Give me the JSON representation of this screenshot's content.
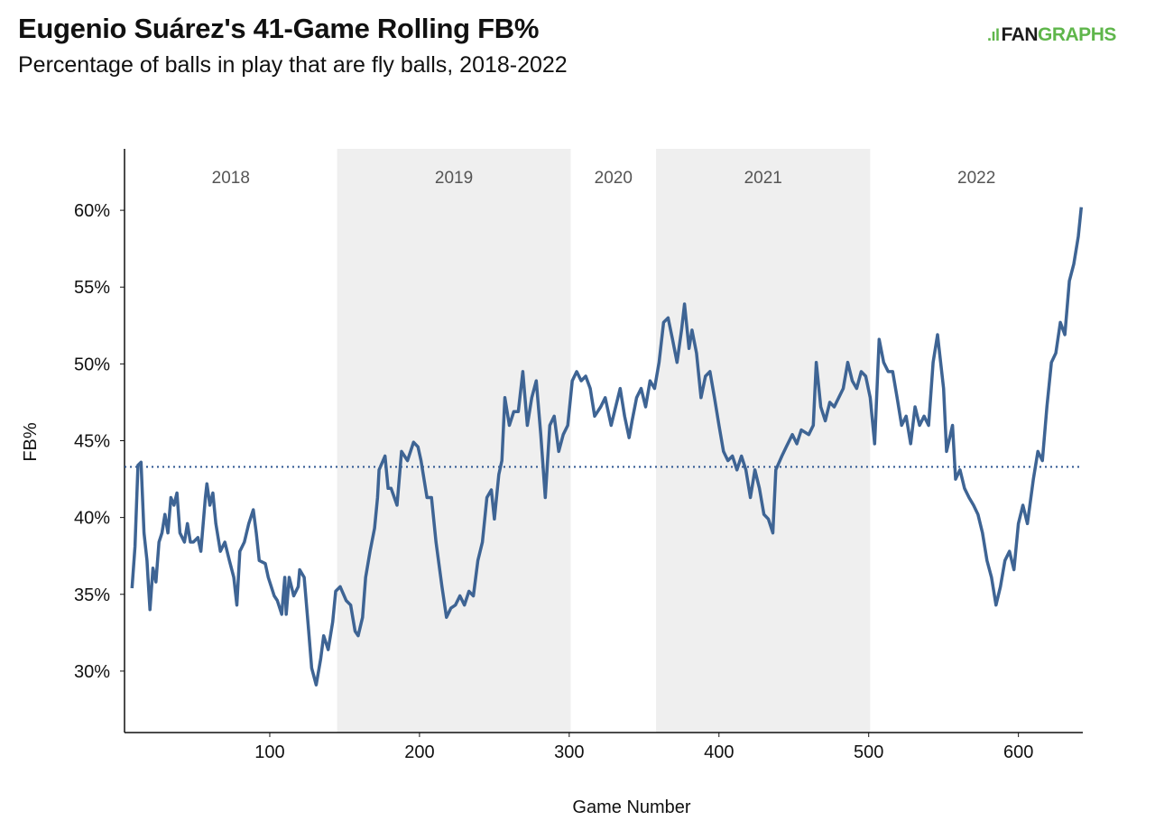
{
  "logo": {
    "fan": "FAN",
    "graphs": "GRAPHS"
  },
  "chart_data": {
    "type": "line",
    "title": "Eugenio Suárez's 41-Game Rolling FB%",
    "subtitle": "Percentage of balls in play that are fly balls, 2018-2022",
    "xlabel": "Game Number",
    "ylabel": "FB%",
    "xlim": [
      3,
      643
    ],
    "ylim": [
      26,
      64
    ],
    "x_ticks": [
      100,
      200,
      300,
      400,
      500,
      600
    ],
    "y_ticks": [
      30,
      35,
      40,
      45,
      50,
      55,
      60
    ],
    "y_tick_labels": [
      "30%",
      "35%",
      "40%",
      "45%",
      "50%",
      "55%",
      "60%"
    ],
    "grid": false,
    "colors": {
      "line": "#3e6494",
      "average": "#2d5590",
      "band": "#efefef"
    },
    "average_line": {
      "value": 43.3,
      "style": "dotted"
    },
    "seasons": [
      {
        "label": "2018",
        "start": 3,
        "end": 145,
        "shaded": false
      },
      {
        "label": "2019",
        "start": 145,
        "end": 301,
        "shaded": true
      },
      {
        "label": "2020",
        "start": 301,
        "end": 358,
        "shaded": false
      },
      {
        "label": "2021",
        "start": 358,
        "end": 501,
        "shaded": true
      },
      {
        "label": "2022",
        "start": 501,
        "end": 643,
        "shaded": false
      }
    ],
    "series": [
      {
        "x": [
          8,
          10,
          12,
          14,
          16,
          18,
          19,
          20,
          22,
          24,
          26,
          28,
          30,
          32,
          34,
          36,
          38,
          40,
          43,
          45,
          47,
          49,
          52,
          54,
          57,
          58,
          60,
          62,
          64,
          67,
          70,
          73,
          76,
          78,
          80,
          83,
          86,
          89,
          91,
          93,
          97,
          99,
          103,
          105,
          108,
          110,
          111,
          113,
          116,
          119,
          120,
          123,
          126,
          128,
          131,
          134,
          136,
          139,
          142,
          144,
          147,
          151,
          154,
          157,
          159,
          162,
          164,
          167,
          170,
          172,
          173,
          177,
          179,
          181,
          185,
          188,
          192,
          196,
          199,
          201,
          205,
          208,
          211,
          215,
          218,
          221,
          224,
          227,
          230,
          233,
          236,
          239,
          242,
          245,
          248,
          250,
          253,
          255,
          257,
          260,
          263,
          266,
          269,
          272,
          275,
          278,
          281,
          284,
          287,
          290,
          293,
          296,
          299,
          302,
          305,
          308,
          311,
          314,
          317,
          321,
          324,
          328,
          331,
          334,
          337,
          340,
          342,
          345,
          348,
          351,
          354,
          357,
          360,
          363,
          366,
          369,
          372,
          375,
          377,
          380,
          382,
          385,
          388,
          391,
          394,
          397,
          400,
          403,
          406,
          409,
          412,
          415,
          418,
          421,
          424,
          427,
          430,
          433,
          436,
          438,
          442,
          445,
          449,
          452,
          455,
          460,
          463,
          465,
          468,
          471,
          474,
          477,
          480,
          483,
          486,
          489,
          492,
          495,
          498,
          501,
          504,
          507,
          510,
          513,
          516,
          519,
          522,
          525,
          528,
          531,
          534,
          537,
          540,
          543,
          546,
          550,
          552,
          556,
          558,
          561,
          564,
          567,
          570,
          573,
          576,
          579,
          582,
          585,
          588,
          591,
          594,
          597,
          600,
          603,
          606,
          610,
          613,
          616,
          619,
          622,
          625,
          628,
          631,
          634,
          637,
          640,
          642
        ],
        "y": [
          35.4,
          38.1,
          43.4,
          43.6,
          39.0,
          37.2,
          35.5,
          34.0,
          36.7,
          35.8,
          38.4,
          39.0,
          40.2,
          39.0,
          41.3,
          40.8,
          41.6,
          39.0,
          38.4,
          39.6,
          38.4,
          38.4,
          38.7,
          37.8,
          41.3,
          42.2,
          40.8,
          41.6,
          39.6,
          37.8,
          38.4,
          37.2,
          36.1,
          34.3,
          37.8,
          38.4,
          39.6,
          40.5,
          39.0,
          37.2,
          37.0,
          36.1,
          34.9,
          34.6,
          33.7,
          36.1,
          33.7,
          36.1,
          34.9,
          35.5,
          36.6,
          36.1,
          32.6,
          30.2,
          29.1,
          30.8,
          32.3,
          31.4,
          33.2,
          35.2,
          35.5,
          34.6,
          34.3,
          32.6,
          32.3,
          33.5,
          36.1,
          37.8,
          39.3,
          41.3,
          43.1,
          44.0,
          41.9,
          41.9,
          40.8,
          44.3,
          43.7,
          44.9,
          44.6,
          43.7,
          41.3,
          41.3,
          38.4,
          35.5,
          33.5,
          34.1,
          34.3,
          34.9,
          34.3,
          35.2,
          34.9,
          37.2,
          38.4,
          41.3,
          41.8,
          39.9,
          42.8,
          43.7,
          47.8,
          46.0,
          46.9,
          46.9,
          49.5,
          46.0,
          47.8,
          48.9,
          45.4,
          41.3,
          46.0,
          46.6,
          44.3,
          45.4,
          46.0,
          48.9,
          49.5,
          48.9,
          49.2,
          48.4,
          46.6,
          47.2,
          47.8,
          46.0,
          47.2,
          48.4,
          46.6,
          45.2,
          46.3,
          47.8,
          48.4,
          47.2,
          48.9,
          48.4,
          50.1,
          52.7,
          53.0,
          51.6,
          50.1,
          52.2,
          53.9,
          51.0,
          52.2,
          50.7,
          47.8,
          49.2,
          49.5,
          47.8,
          46.0,
          44.3,
          43.7,
          44.0,
          43.1,
          44.0,
          43.1,
          41.3,
          43.1,
          41.9,
          40.2,
          39.9,
          39.0,
          43.1,
          44.0,
          44.6,
          45.4,
          44.8,
          45.7,
          45.4,
          46.0,
          50.1,
          47.2,
          46.3,
          47.5,
          47.2,
          47.8,
          48.4,
          50.1,
          48.9,
          48.4,
          49.5,
          49.2,
          47.8,
          44.8,
          51.6,
          50.1,
          49.5,
          49.5,
          47.8,
          46.0,
          46.6,
          44.8,
          47.2,
          46.0,
          46.6,
          46.0,
          50.1,
          51.9,
          48.4,
          44.3,
          46.0,
          42.5,
          43.1,
          41.9,
          41.3,
          40.8,
          40.2,
          39.0,
          37.2,
          36.1,
          34.3,
          35.5,
          37.2,
          37.8,
          36.6,
          39.6,
          40.8,
          39.6,
          42.5,
          44.3,
          43.7,
          47.2,
          50.1,
          50.7,
          52.7,
          51.9,
          55.4,
          56.5,
          58.3,
          60.2
        ]
      }
    ]
  }
}
